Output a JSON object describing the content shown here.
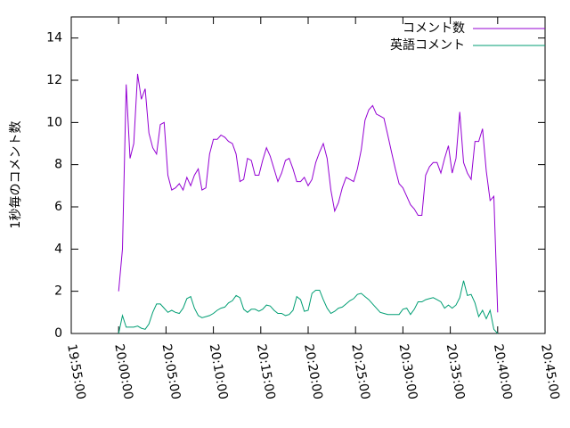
{
  "chart_data": {
    "type": "line",
    "y_label": "1秒毎のコメント数",
    "x": [
      "20:00:00",
      "20:00:24",
      "20:00:48",
      "20:01:12",
      "20:01:36",
      "20:02:00",
      "20:02:24",
      "20:02:48",
      "20:03:12",
      "20:03:36",
      "20:04:00",
      "20:04:24",
      "20:04:48",
      "20:05:12",
      "20:05:36",
      "20:06:00",
      "20:06:24",
      "20:06:48",
      "20:07:12",
      "20:07:36",
      "20:08:00",
      "20:08:24",
      "20:08:48",
      "20:09:12",
      "20:09:36",
      "20:10:00",
      "20:10:24",
      "20:10:48",
      "20:11:12",
      "20:11:36",
      "20:12:00",
      "20:12:24",
      "20:12:48",
      "20:13:12",
      "20:13:36",
      "20:14:00",
      "20:14:24",
      "20:14:48",
      "20:15:12",
      "20:15:36",
      "20:16:00",
      "20:16:24",
      "20:16:48",
      "20:17:12",
      "20:17:36",
      "20:18:00",
      "20:18:24",
      "20:18:48",
      "20:19:12",
      "20:19:36",
      "20:20:00",
      "20:20:24",
      "20:20:48",
      "20:21:12",
      "20:21:36",
      "20:22:00",
      "20:22:24",
      "20:22:48",
      "20:23:12",
      "20:23:36",
      "20:24:00",
      "20:24:24",
      "20:24:48",
      "20:25:12",
      "20:25:36",
      "20:26:00",
      "20:26:24",
      "20:26:48",
      "20:27:12",
      "20:27:36",
      "20:28:00",
      "20:28:24",
      "20:28:48",
      "20:29:12",
      "20:29:36",
      "20:30:00",
      "20:30:24",
      "20:30:48",
      "20:31:12",
      "20:31:36",
      "20:32:00",
      "20:32:24",
      "20:32:48",
      "20:33:12",
      "20:33:36",
      "20:34:00",
      "20:34:24",
      "20:34:48",
      "20:35:12",
      "20:35:36",
      "20:36:00",
      "20:36:24",
      "20:36:48",
      "20:37:12",
      "20:37:36",
      "20:38:00",
      "20:38:24",
      "20:38:48",
      "20:39:12",
      "20:39:36",
      "20:40:00"
    ],
    "series": [
      {
        "name": "コメント数",
        "color": "#9400d3",
        "values": [
          2,
          4,
          11.8,
          8.3,
          9,
          12.3,
          11.1,
          11.6,
          9.5,
          8.8,
          8.5,
          9.9,
          10,
          7.5,
          6.8,
          6.9,
          7.1,
          6.8,
          7.4,
          7,
          7.5,
          7.8,
          6.8,
          6.9,
          8.5,
          9.2,
          9.2,
          9.4,
          9.3,
          9.1,
          9,
          8.5,
          7.2,
          7.3,
          8.3,
          8.2,
          7.5,
          7.5,
          8.2,
          8.8,
          8.4,
          7.8,
          7.2,
          7.6,
          8.2,
          8.3,
          7.8,
          7.2,
          7.2,
          7.4,
          7,
          7.3,
          8.1,
          8.6,
          9,
          8.3,
          6.8,
          5.8,
          6.2,
          6.9,
          7.4,
          7.3,
          7.2,
          7.8,
          8.7,
          10.1,
          10.6,
          10.8,
          10.4,
          10.3,
          10.2,
          9.4,
          8.6,
          7.8,
          7.1,
          6.9,
          6.5,
          6.1,
          5.9,
          5.6,
          5.6,
          7.5,
          7.9,
          8.1,
          8.1,
          7.6,
          8.3,
          8.9,
          7.6,
          8.3,
          10.5,
          8.1,
          7.6,
          7.3,
          9.1,
          9.1,
          9.7,
          7.7,
          6.3,
          6.5,
          1
        ]
      },
      {
        "name": "英語コメント",
        "color": "#009e73",
        "values": [
          0,
          0.85,
          0.3,
          0.3,
          0.3,
          0.35,
          0.25,
          0.2,
          0.45,
          1,
          1.4,
          1.4,
          1.2,
          1,
          1.1,
          1,
          0.95,
          1.2,
          1.65,
          1.75,
          1.2,
          0.85,
          0.75,
          0.8,
          0.85,
          0.95,
          1.1,
          1.2,
          1.25,
          1.45,
          1.55,
          1.8,
          1.7,
          1.15,
          1,
          1.15,
          1.15,
          1.05,
          1.15,
          1.35,
          1.3,
          1.1,
          0.95,
          0.95,
          0.85,
          0.9,
          1.1,
          1.75,
          1.6,
          1.05,
          1.1,
          1.9,
          2.05,
          2.05,
          1.6,
          1.2,
          0.95,
          1.05,
          1.2,
          1.25,
          1.4,
          1.55,
          1.65,
          1.85,
          1.9,
          1.75,
          1.6,
          1.4,
          1.2,
          1,
          0.95,
          0.9,
          0.9,
          0.9,
          0.9,
          1.15,
          1.2,
          0.9,
          1.15,
          1.5,
          1.5,
          1.6,
          1.65,
          1.7,
          1.6,
          1.5,
          1.2,
          1.35,
          1.2,
          1.35,
          1.7,
          2.5,
          1.8,
          1.85,
          1.45,
          0.8,
          1.1,
          0.7,
          1.1,
          0.2,
          0
        ]
      }
    ],
    "xlim": [
      "19:55:00",
      "20:45:00"
    ],
    "xticks": [
      "19:55:00",
      "20:00:00",
      "20:05:00",
      "20:10:00",
      "20:15:00",
      "20:20:00",
      "20:25:00",
      "20:30:00",
      "20:35:00",
      "20:40:00",
      "20:45:00"
    ],
    "ylim": [
      0,
      15
    ],
    "yticks": [
      0,
      2,
      4,
      6,
      8,
      10,
      12,
      14
    ],
    "legend": "upper right"
  }
}
